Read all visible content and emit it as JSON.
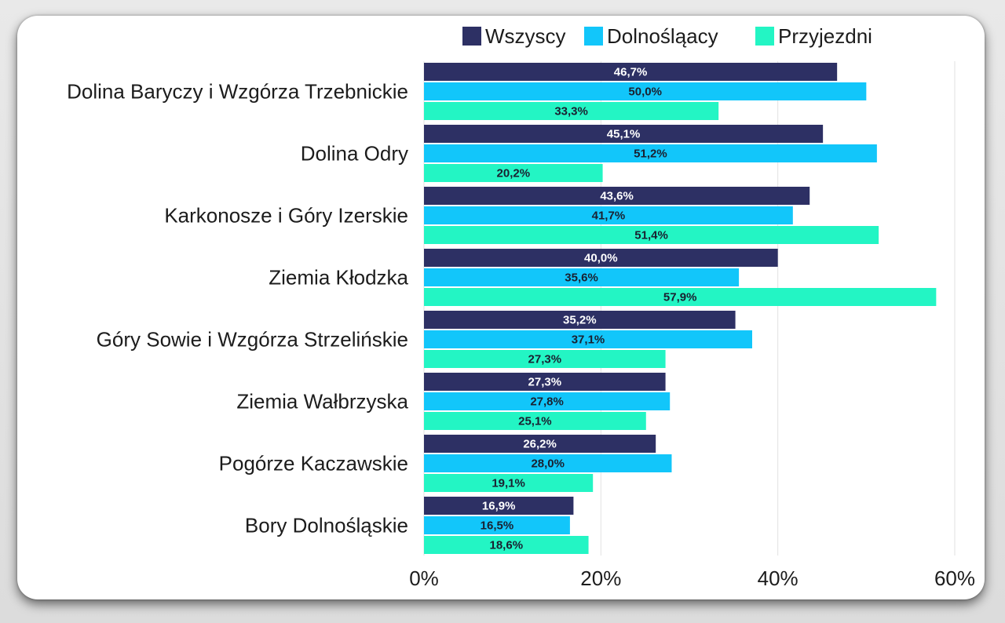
{
  "chart_data": {
    "type": "bar",
    "orientation": "horizontal",
    "title": "",
    "xlabel": "",
    "ylabel": "",
    "categories": [
      "Dolina Baryczy i Wzgórza Trzebnickie",
      "Dolina Odry",
      "Karkonosze i Góry Izerskie",
      "Ziemia Kłodzka",
      "Góry Sowie i Wzgórza Strzelińskie",
      "Ziemia Wałbrzyska",
      "Pogórze Kaczawskie",
      "Bory Dolnośląskie"
    ],
    "series": [
      {
        "name": "Wszyscy",
        "color": "#2d3064",
        "label_color": "#ffffff",
        "values": [
          46.7,
          45.1,
          43.6,
          40.0,
          35.2,
          27.3,
          26.2,
          16.9
        ],
        "value_labels": [
          "46,7%",
          "45,1%",
          "43,6%",
          "40,0%",
          "35,2%",
          "27,3%",
          "26,2%",
          "16,9%"
        ]
      },
      {
        "name": "Dolnośląacy",
        "color": "#12c6fa",
        "label_color": "#1a2030",
        "values": [
          50.0,
          51.2,
          41.7,
          35.6,
          37.1,
          27.8,
          28.0,
          16.5
        ],
        "value_labels": [
          "50,0%",
          "51,2%",
          "41,7%",
          "35,6%",
          "37,1%",
          "27,8%",
          "28,0%",
          "16,5%"
        ]
      },
      {
        "name": "Przyjezdni",
        "color": "#23f5c4",
        "label_color": "#1a2030",
        "values": [
          33.3,
          20.2,
          51.4,
          57.9,
          27.3,
          25.1,
          19.1,
          18.6
        ],
        "value_labels": [
          "33,3%",
          "20,2%",
          "51,4%",
          "57,9%",
          "27,3%",
          "25,1%",
          "19,1%",
          "18,6%"
        ]
      }
    ],
    "xlim": [
      0,
      60
    ],
    "xticks": [
      0,
      20,
      40,
      60
    ],
    "xtick_labels": [
      "0%",
      "20%",
      "40%",
      "60%"
    ],
    "grid": true,
    "legend_position": "top-right"
  }
}
